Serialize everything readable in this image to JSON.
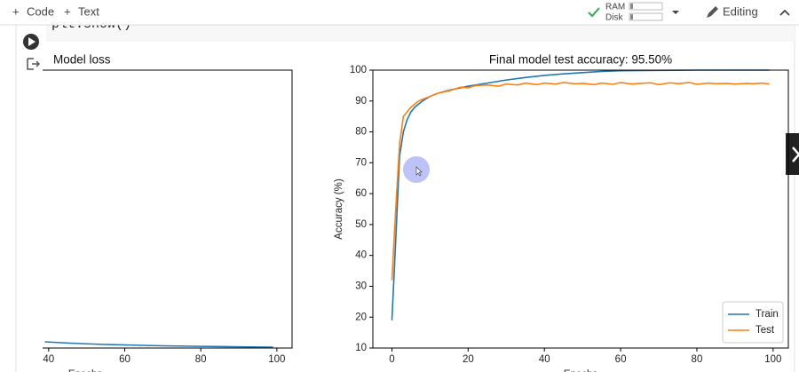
{
  "toolbar": {
    "buttons": [
      "Code",
      "Text"
    ],
    "resources": [
      "RAM",
      "Disk"
    ],
    "mode": "Editing"
  },
  "cell": {
    "code": "plt.show()"
  },
  "chart_data": [
    {
      "type": "line",
      "title": "Model loss",
      "xlabel": "Epochs",
      "xlim": [
        -5,
        104
      ],
      "ylim": [
        0,
        2.5
      ],
      "xticks": [
        40,
        60,
        80,
        100
      ],
      "series": [
        {
          "color": "#1f77b4",
          "x": [
            39,
            45,
            50,
            55,
            60,
            70,
            80,
            90,
            99
          ],
          "values": [
            0.056,
            0.045,
            0.038,
            0.032,
            0.028,
            0.02,
            0.015,
            0.011,
            0.008
          ]
        }
      ]
    },
    {
      "type": "line",
      "title": "Final model test accuracy: 95.50%",
      "xlabel": "Epochs",
      "ylabel": "Accuracy (%)",
      "xlim": [
        -5,
        104
      ],
      "ylim": [
        10,
        100
      ],
      "xticks": [
        0,
        20,
        40,
        60,
        80,
        100
      ],
      "yticks": [
        10,
        20,
        30,
        40,
        50,
        60,
        70,
        80,
        90,
        100
      ],
      "legend": "lower right",
      "series": [
        {
          "name": "Train",
          "color": "#1f77b4",
          "x": [
            0,
            1,
            2,
            3,
            4,
            5,
            6,
            7,
            8,
            10,
            12,
            15,
            20,
            25,
            30,
            35,
            40,
            45,
            50,
            55,
            60,
            70,
            80,
            99
          ],
          "values": [
            19,
            45,
            72,
            80,
            84,
            86.5,
            88,
            89,
            90,
            91.5,
            92.5,
            93.5,
            94.8,
            95.8,
            96.8,
            97.6,
            98.3,
            98.8,
            99.2,
            99.6,
            99.8,
            99.9,
            100,
            100
          ]
        },
        {
          "name": "Test",
          "color": "#ff7f0e",
          "x": [
            0,
            1,
            2,
            3,
            4,
            5,
            6,
            7,
            8,
            10,
            12,
            15,
            18,
            20,
            22,
            25,
            28,
            30,
            33,
            35,
            38,
            40,
            43,
            45,
            48,
            50,
            53,
            55,
            58,
            60,
            63,
            65,
            68,
            70,
            73,
            75,
            78,
            80,
            83,
            85,
            88,
            90,
            93,
            95,
            97,
            99
          ],
          "values": [
            32,
            55,
            76,
            85,
            86.5,
            88,
            89,
            90,
            90.5,
            91.5,
            92.5,
            93.3,
            94.5,
            94.3,
            95,
            95.2,
            94.8,
            95.5,
            95.2,
            95.8,
            95.3,
            95.8,
            95.5,
            96,
            95.6,
            95.7,
            95.3,
            95.8,
            95.4,
            96,
            95.5,
            95.7,
            95.9,
            95.3,
            95.9,
            95.6,
            96,
            95.4,
            95.8,
            95.6,
            95.7,
            95.5,
            95.7,
            95.6,
            95.8,
            95.5
          ]
        }
      ]
    }
  ]
}
